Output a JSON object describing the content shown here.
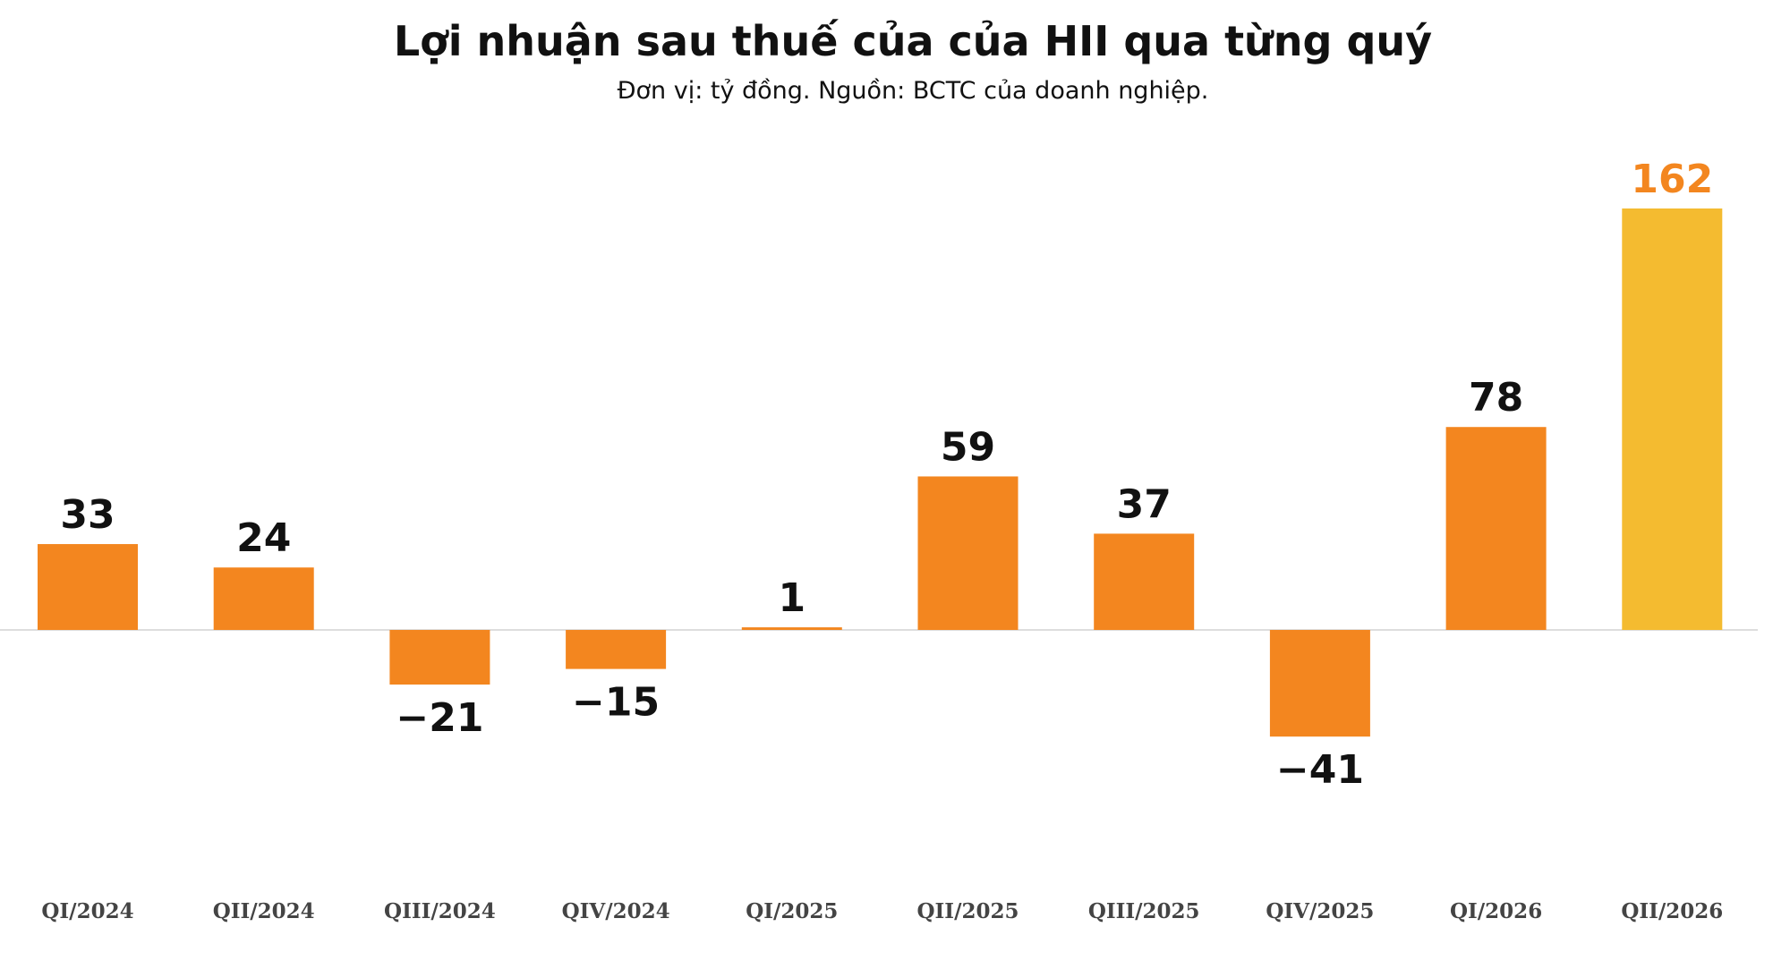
{
  "chart_data": {
    "type": "bar",
    "title": "Lợi nhuận sau thuế của của HII qua từng quý",
    "subtitle": "Đơn vị: tỷ đồng. Nguồn: BCTC của doanh nghiệp.",
    "categories": [
      "QI/2024",
      "QII/2024",
      "QIII/2024",
      "QIV/2024",
      "QI/2025",
      "QII/2025",
      "QIII/2025",
      "QIV/2025",
      "QI/2026",
      "QII/2026"
    ],
    "values": [
      33,
      24,
      -21,
      -15,
      1,
      59,
      37,
      -41,
      78,
      162
    ],
    "value_labels": [
      "33",
      "24",
      "−21",
      "−15",
      "1",
      "59",
      "37",
      "−41",
      "78",
      "162"
    ],
    "colors": [
      "#f3861f",
      "#f3861f",
      "#f3861f",
      "#f3861f",
      "#f3861f",
      "#f3861f",
      "#f3861f",
      "#f3861f",
      "#f3861f",
      "#f4bb30"
    ],
    "label_colors": [
      "#111111",
      "#111111",
      "#111111",
      "#111111",
      "#111111",
      "#111111",
      "#111111",
      "#111111",
      "#111111",
      "#f3861f"
    ]
  }
}
